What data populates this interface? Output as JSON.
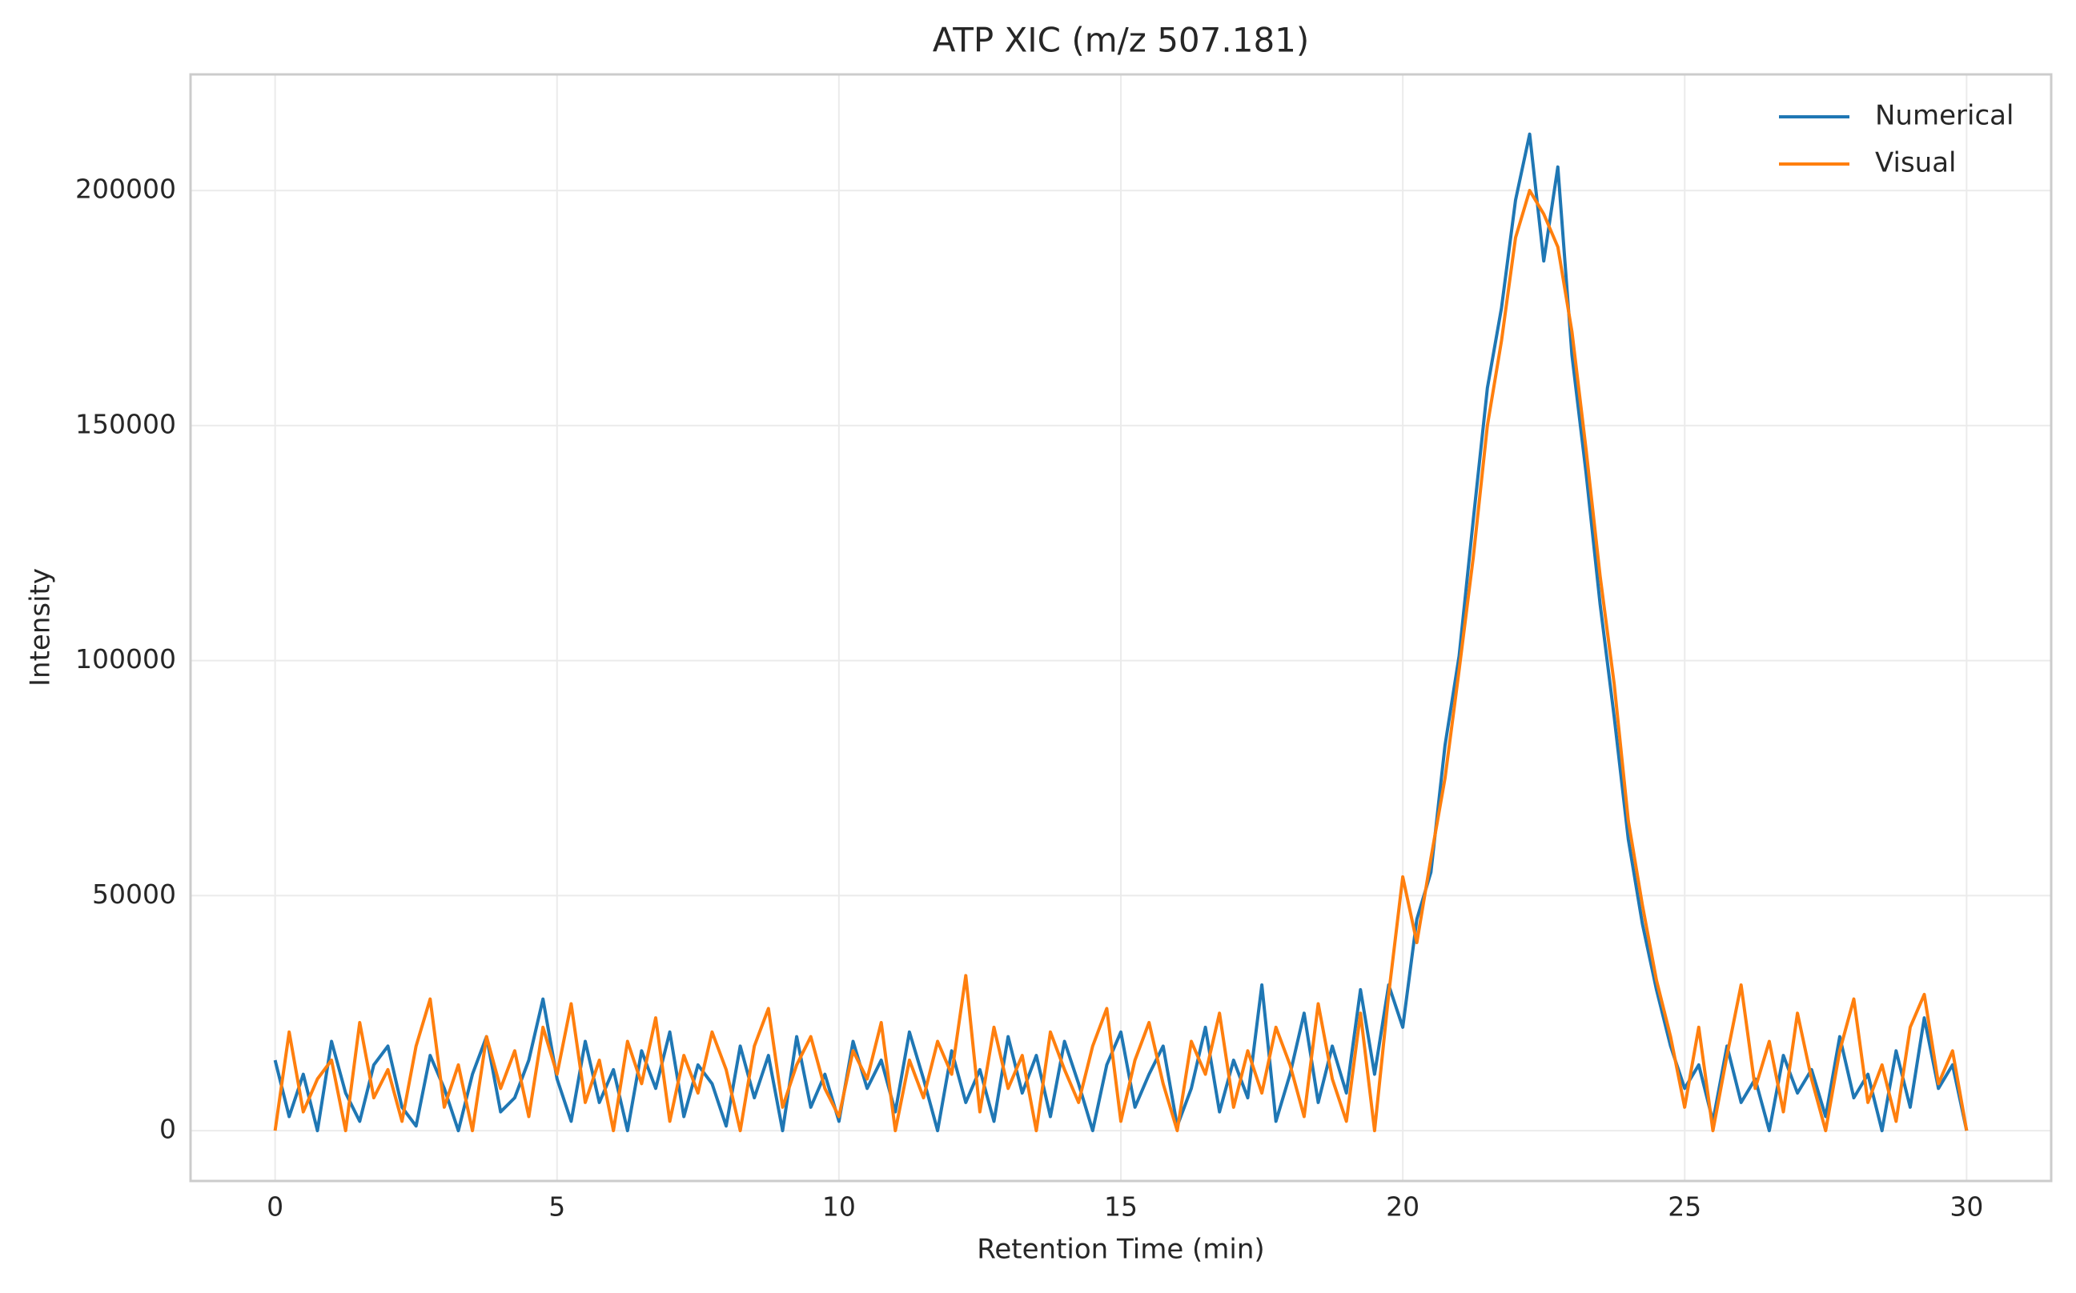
{
  "chart_data": {
    "type": "line",
    "title": "ATP XIC (m/z 507.181)",
    "x_label": "Retention Time (min)",
    "y_label": "Intensity",
    "x": [
      0,
      0.25,
      0.5,
      0.75,
      1,
      1.25,
      1.5,
      1.75,
      2,
      2.25,
      2.5,
      2.75,
      3,
      3.25,
      3.5,
      3.75,
      4,
      4.25,
      4.5,
      4.75,
      5,
      5.25,
      5.5,
      5.75,
      6,
      6.25,
      6.5,
      6.75,
      7,
      7.25,
      7.5,
      7.75,
      8,
      8.25,
      8.5,
      8.75,
      9,
      9.25,
      9.5,
      9.75,
      10,
      10.25,
      10.5,
      10.75,
      11,
      11.25,
      11.5,
      11.75,
      12,
      12.25,
      12.5,
      12.75,
      13,
      13.25,
      13.5,
      13.75,
      14,
      14.25,
      14.5,
      14.75,
      15,
      15.25,
      15.5,
      15.75,
      16,
      16.25,
      16.5,
      16.75,
      17,
      17.25,
      17.5,
      17.75,
      18,
      18.25,
      18.5,
      18.75,
      19,
      19.25,
      19.5,
      19.75,
      20,
      20.25,
      20.5,
      20.75,
      21,
      21.25,
      21.5,
      21.75,
      22,
      22.25,
      22.5,
      22.75,
      23,
      23.25,
      23.5,
      23.75,
      24,
      24.25,
      24.5,
      24.75,
      25,
      25.25,
      25.5,
      25.75,
      26,
      26.25,
      26.5,
      26.75,
      27,
      27.25,
      27.5,
      27.75,
      28,
      28.25,
      28.5,
      28.75,
      29,
      29.25,
      29.5,
      29.75,
      30
    ],
    "series": [
      {
        "name": "Numerical",
        "color": "#1f77b4",
        "values": [
          15000,
          3000,
          12000,
          0,
          19000,
          8000,
          2000,
          14000,
          18000,
          5000,
          1000,
          16000,
          9000,
          0,
          12000,
          20000,
          4000,
          7000,
          15000,
          28000,
          11000,
          2000,
          19000,
          6000,
          13000,
          0,
          17000,
          9000,
          21000,
          3000,
          14000,
          10000,
          1000,
          18000,
          7000,
          16000,
          0,
          20000,
          5000,
          12000,
          2000,
          19000,
          9000,
          15000,
          4000,
          21000,
          11000,
          0,
          17000,
          6000,
          13000,
          2000,
          20000,
          8000,
          16000,
          3000,
          19000,
          10000,
          0,
          14000,
          21000,
          5000,
          12000,
          18000,
          1000,
          9000,
          22000,
          4000,
          15000,
          7000,
          31000,
          2000,
          12000,
          25000,
          6000,
          18000,
          8000,
          30000,
          12000,
          31000,
          22000,
          45000,
          55000,
          82000,
          101000,
          130000,
          158000,
          175000,
          198000,
          212000,
          185000,
          205000,
          165000,
          140000,
          112000,
          88000,
          62000,
          44000,
          30000,
          18000,
          9000,
          14000,
          2000,
          18000,
          6000,
          11000,
          0,
          16000,
          8000,
          13000,
          3000,
          20000,
          7000,
          12000,
          0,
          17000,
          5000,
          24000,
          9000,
          14000,
          0
        ]
      },
      {
        "name": "Visual",
        "color": "#ff7f0e",
        "values": [
          0,
          21000,
          4000,
          11000,
          15000,
          0,
          23000,
          7000,
          13000,
          2000,
          18000,
          28000,
          5000,
          14000,
          0,
          20000,
          9000,
          17000,
          3000,
          22000,
          12000,
          27000,
          6000,
          15000,
          0,
          19000,
          10000,
          24000,
          2000,
          16000,
          8000,
          21000,
          13000,
          0,
          18000,
          26000,
          5000,
          14000,
          20000,
          9000,
          3000,
          17000,
          11000,
          23000,
          0,
          15000,
          7000,
          19000,
          12000,
          33000,
          4000,
          22000,
          9000,
          16000,
          0,
          21000,
          13000,
          6000,
          18000,
          26000,
          2000,
          15000,
          23000,
          10000,
          0,
          19000,
          12000,
          25000,
          5000,
          17000,
          8000,
          22000,
          14000,
          3000,
          27000,
          11000,
          2000,
          25000,
          0,
          29000,
          54000,
          40000,
          58000,
          75000,
          98000,
          122000,
          150000,
          168000,
          190000,
          200000,
          195000,
          188000,
          170000,
          145000,
          118000,
          95000,
          66000,
          48000,
          32000,
          20000,
          5000,
          22000,
          0,
          16000,
          31000,
          9000,
          19000,
          4000,
          25000,
          11000,
          0,
          17000,
          28000,
          6000,
          14000,
          2000,
          22000,
          29000,
          10000,
          17000,
          0
        ]
      }
    ],
    "xlim": [
      -1.5,
      31.5
    ],
    "ylim": [
      -10700,
      224700
    ],
    "xticks": [
      0,
      5,
      10,
      15,
      20,
      25,
      30
    ],
    "yticks": [
      0,
      50000,
      100000,
      150000,
      200000
    ],
    "grid": true,
    "legend": "upper right"
  }
}
